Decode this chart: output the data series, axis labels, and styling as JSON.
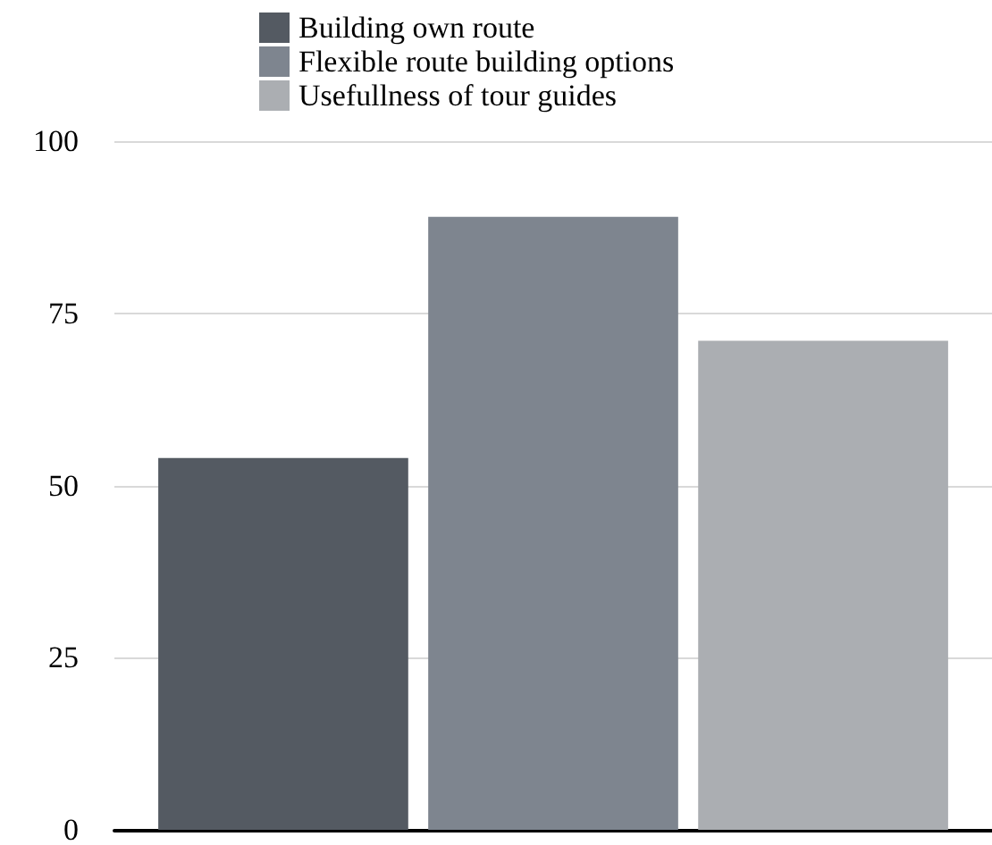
{
  "chart_data": {
    "type": "bar",
    "categories": [
      null
    ],
    "series": [
      {
        "name": "Building own route",
        "color": "#545a62",
        "values": [
          54
        ]
      },
      {
        "name": "Flexible route building options",
        "color": "#7e858f",
        "values": [
          89
        ]
      },
      {
        "name": "Usefullness of tour guides",
        "color": "#abaeb2",
        "values": [
          71
        ]
      }
    ],
    "ylim": [
      0,
      100
    ],
    "yticks": [
      0,
      25,
      50,
      75,
      100
    ],
    "grid": "y",
    "legend": "top"
  }
}
